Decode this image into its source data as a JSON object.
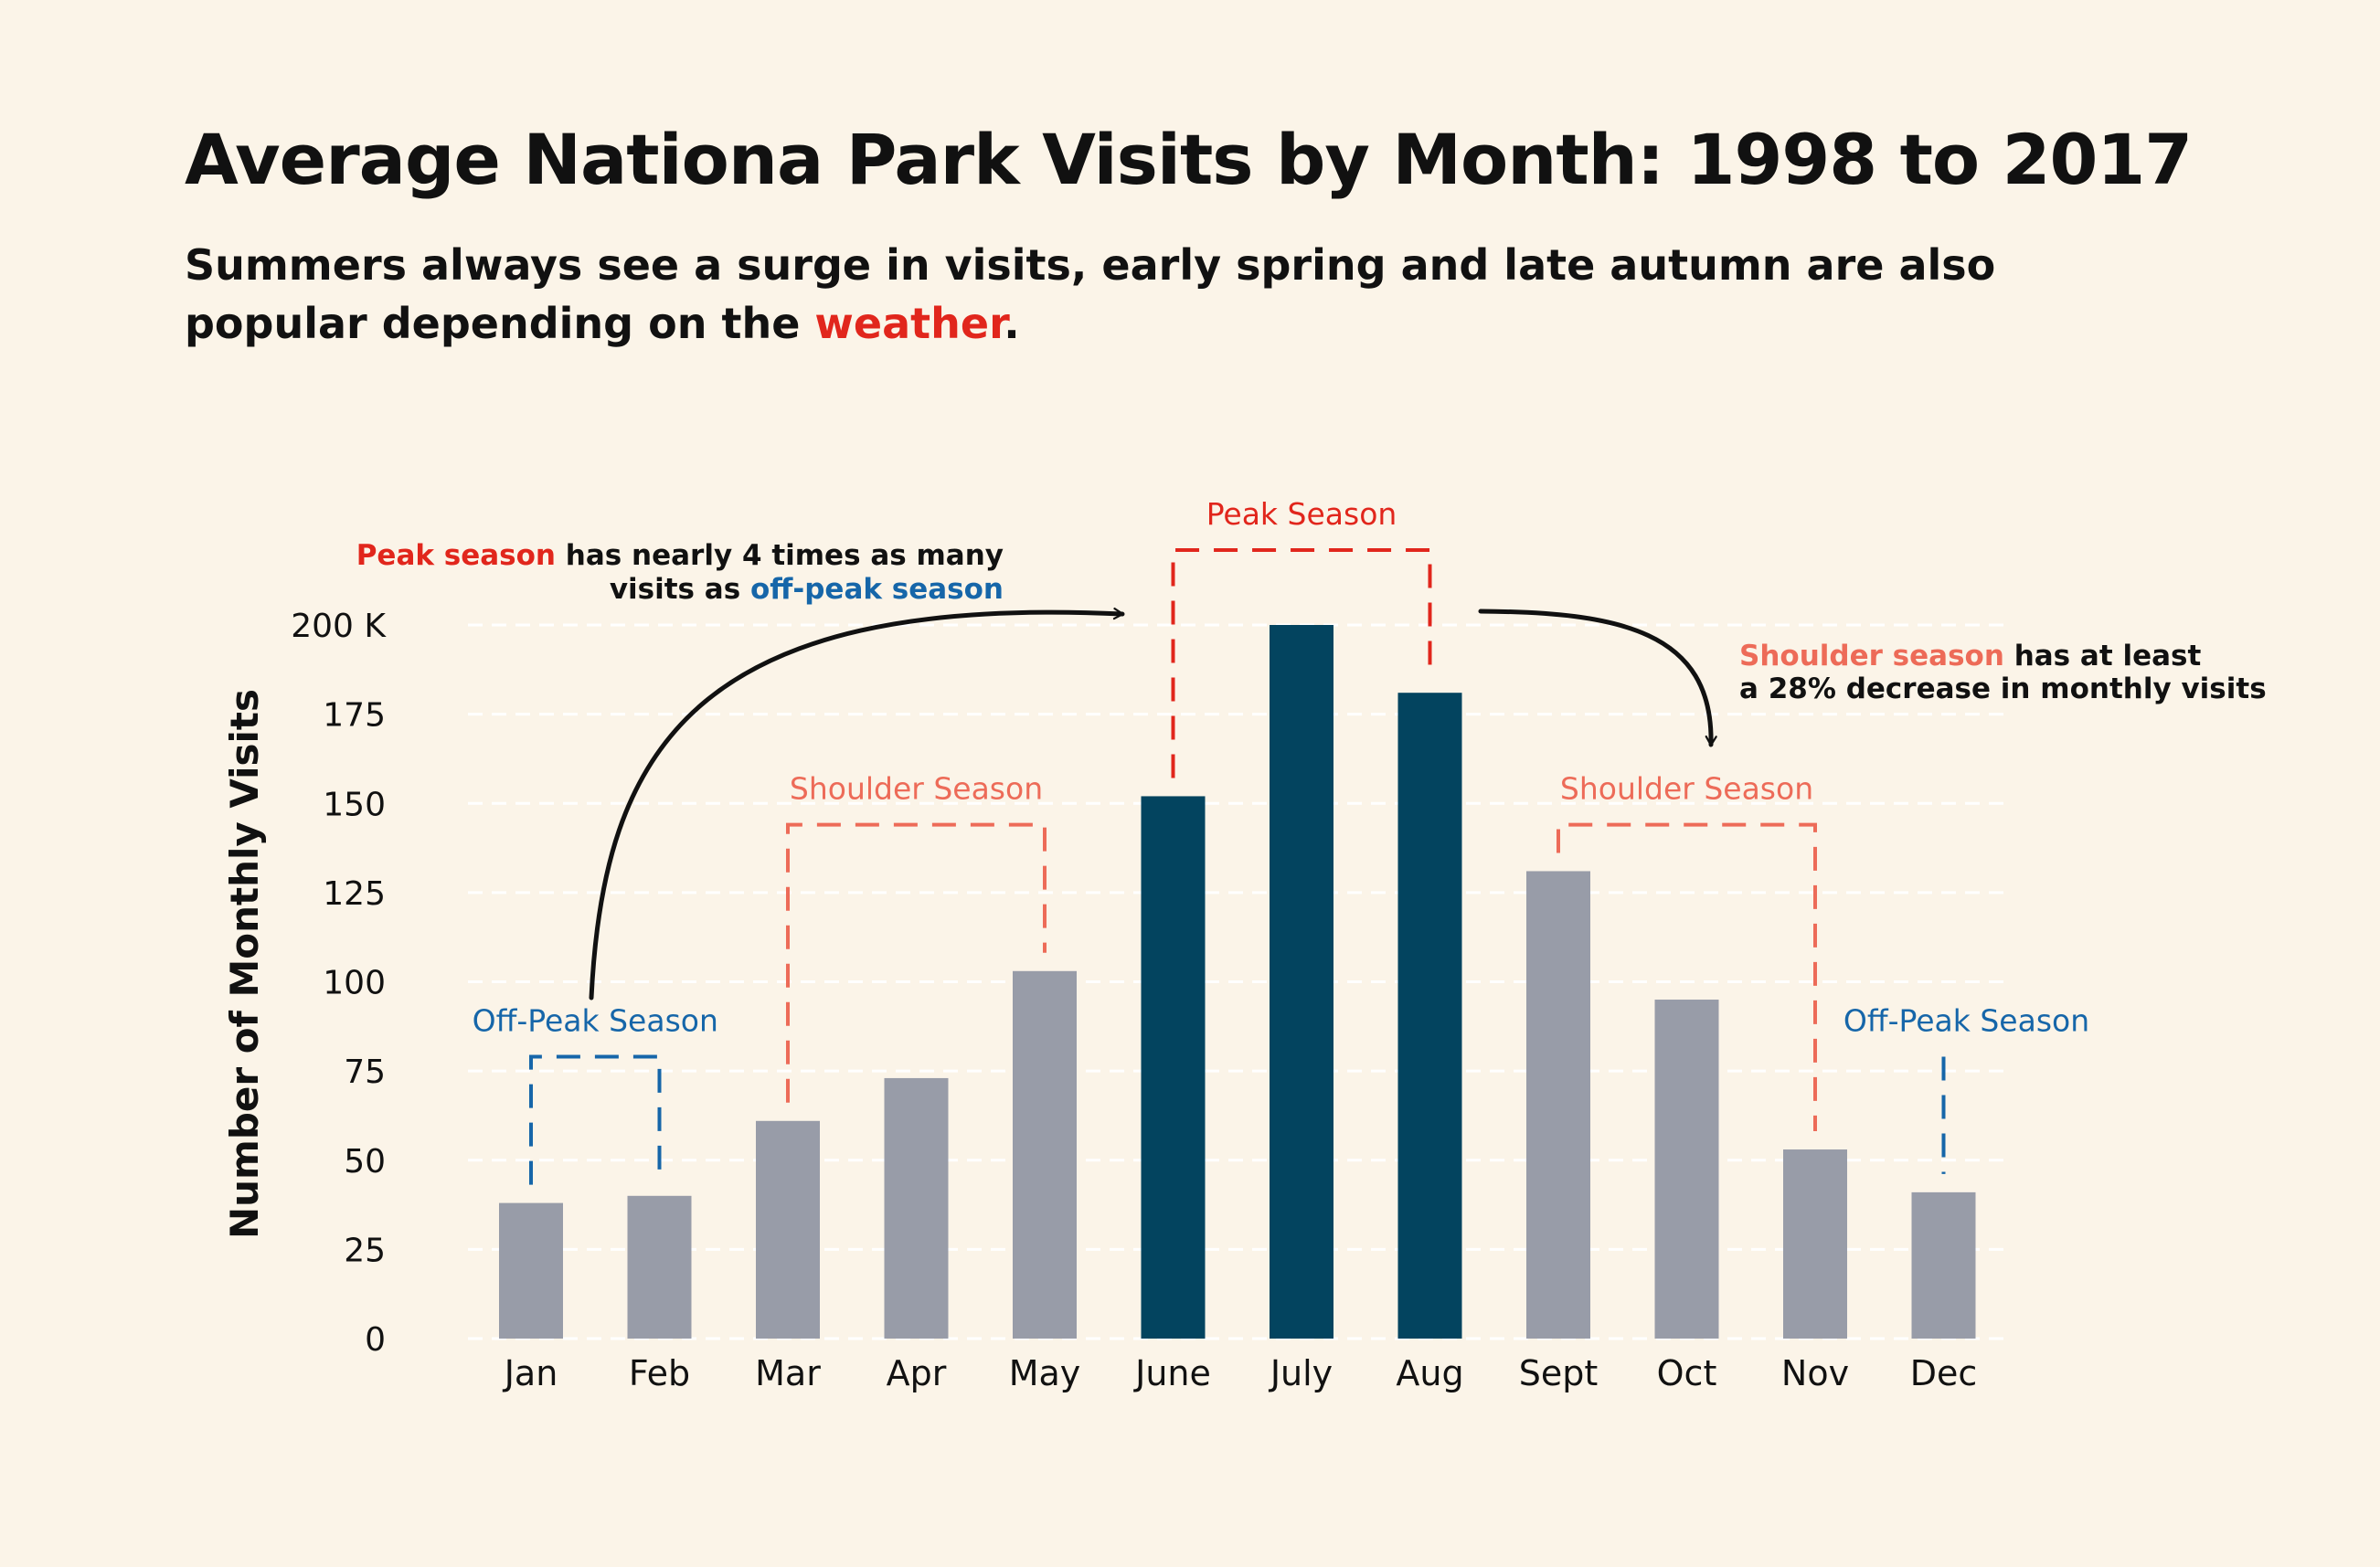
{
  "title": "Average Nationa Park Visits by Month: 1998 to 2017",
  "subtitle": {
    "before": "Summers always see a surge in visits, early spring and late autumn are also popular depending on the ",
    "highlight": "weather",
    "after": "."
  },
  "colors": {
    "background": "#fbf4e8",
    "bar_default": "#989ca8",
    "bar_peak": "#03445f",
    "peak": "#e1261c",
    "shoulder": "#ed6b58",
    "off_peak": "#1666a9",
    "grid": "#ffffff",
    "text": "#111111"
  },
  "chart_data": {
    "type": "bar",
    "ylabel": "Number of Monthly Visits",
    "ylim": [
      0,
      200
    ],
    "yticks": [
      0,
      25,
      50,
      75,
      100,
      125,
      150,
      175,
      200
    ],
    "ytick_labels": [
      "0",
      "25",
      "50",
      "75",
      "100",
      "125",
      "150",
      "175",
      "200 K"
    ],
    "grid": "horizontal dashed",
    "categories": [
      "Jan",
      "Feb",
      "Mar",
      "Apr",
      "May",
      "June",
      "July",
      "Aug",
      "Sept",
      "Oct",
      "Nov",
      "Dec"
    ],
    "values": [
      38,
      40,
      61,
      73,
      103,
      152,
      200,
      181,
      131,
      95,
      53,
      41
    ],
    "highlighted": [
      "June",
      "July",
      "Aug"
    ],
    "season_brackets": [
      {
        "label": "Off-Peak Season",
        "season": "off_peak",
        "months": [
          "Jan",
          "Feb"
        ],
        "top_value": 79
      },
      {
        "label": "Shoulder Season",
        "season": "shoulder",
        "months": [
          "Mar",
          "May"
        ],
        "top_value": 144
      },
      {
        "label": "Peak Season",
        "season": "peak",
        "months": [
          "June",
          "Aug"
        ],
        "top_value": 221
      },
      {
        "label": "Shoulder Season",
        "season": "shoulder",
        "months": [
          "Sept",
          "Nov"
        ],
        "top_value": 144
      },
      {
        "label": "Off-Peak Season",
        "season": "off_peak",
        "months": [
          "Dec"
        ],
        "top_value": 79
      }
    ],
    "annotations": [
      {
        "id": "peak-vs-offpeak",
        "line1": [
          {
            "text": "Peak season",
            "season": "peak"
          },
          {
            "text": " has nearly 4 times as many"
          }
        ],
        "line2": [
          {
            "text": "visits as "
          },
          {
            "text": "off-peak season",
            "season": "off_peak"
          }
        ]
      },
      {
        "id": "shoulder-decrease",
        "line1": [
          {
            "text": "Shoulder season",
            "season": "shoulder"
          },
          {
            "text": " has at least"
          }
        ],
        "line2": [
          {
            "text": "a 28% decrease in monthly visits"
          }
        ]
      }
    ]
  }
}
